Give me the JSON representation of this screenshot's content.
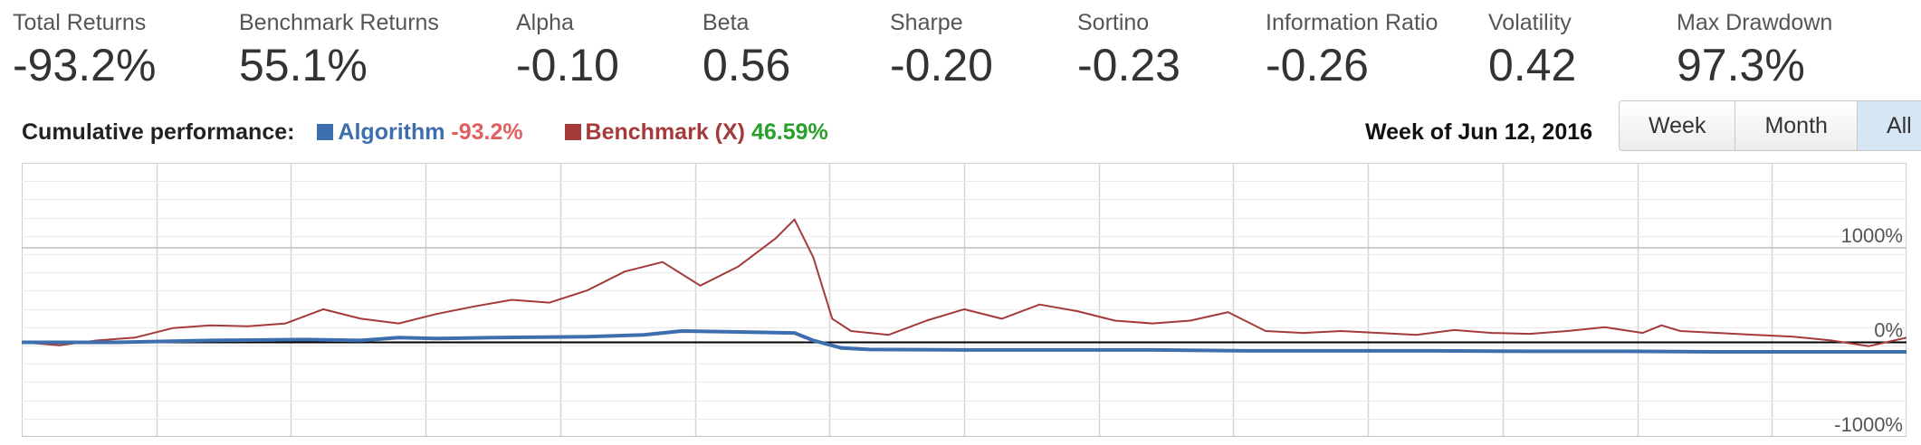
{
  "metrics": [
    {
      "label": "Total Returns",
      "value": "-93.2%"
    },
    {
      "label": "Benchmark Returns",
      "value": "55.1%"
    },
    {
      "label": "Alpha",
      "value": "-0.10"
    },
    {
      "label": "Beta",
      "value": "0.56"
    },
    {
      "label": "Sharpe",
      "value": "-0.20"
    },
    {
      "label": "Sortino",
      "value": "-0.23"
    },
    {
      "label": "Information Ratio",
      "value": "-0.26"
    },
    {
      "label": "Volatility",
      "value": "0.42"
    },
    {
      "label": "Max Drawdown",
      "value": "97.3%"
    }
  ],
  "performance": {
    "label": "Cumulative performance:",
    "algorithm_name": "Algorithm",
    "algorithm_value": "-93.2%",
    "benchmark_name": "Benchmark (X)",
    "benchmark_value": "46.59%"
  },
  "week_label": "Week of Jun 12, 2016",
  "range_buttons": [
    {
      "label": "Week",
      "active": false
    },
    {
      "label": "Month",
      "active": false
    },
    {
      "label": "All",
      "active": true
    }
  ],
  "colors": {
    "algorithm": "#3d6fae",
    "benchmark": "#a43a3a",
    "negative_value": "#e06060",
    "positive_value": "#2aa02a",
    "zero_line": "#000000",
    "grid": "#d5d5d5"
  },
  "chart_data": {
    "type": "line",
    "y_ticks": [
      {
        "value": 1000,
        "label": "1000%"
      },
      {
        "value": 0,
        "label": "0%"
      },
      {
        "value": -1000,
        "label": "-1000%"
      }
    ],
    "ylim": [
      -1000,
      1900
    ],
    "xlim": [
      0,
      100
    ],
    "grid": true,
    "series": [
      {
        "name": "Algorithm",
        "x": [
          0,
          5,
          10,
          15,
          18,
          20,
          22,
          25,
          30,
          33,
          35,
          38,
          41,
          42,
          43.5,
          45,
          50,
          55,
          60,
          65,
          70,
          75,
          80,
          85,
          90,
          95,
          100
        ],
        "y": [
          0,
          0,
          20,
          30,
          20,
          50,
          40,
          50,
          60,
          80,
          120,
          110,
          100,
          20,
          -60,
          -75,
          -80,
          -80,
          -80,
          -90,
          -90,
          -90,
          -95,
          -95,
          -100,
          -100,
          -100
        ]
      },
      {
        "name": "Benchmark (X)",
        "x": [
          0,
          2,
          4,
          6,
          8,
          10,
          12,
          14,
          16,
          18,
          20,
          22,
          24,
          26,
          28,
          30,
          32,
          34,
          36,
          38,
          40,
          41,
          42,
          43,
          44,
          46,
          48,
          50,
          52,
          54,
          56,
          58,
          60,
          62,
          64,
          66,
          68,
          70,
          72,
          74,
          76,
          78,
          80,
          82,
          84,
          86,
          87,
          88,
          90,
          92,
          94,
          96,
          98,
          100
        ],
        "y": [
          0,
          -30,
          20,
          50,
          150,
          180,
          170,
          200,
          350,
          250,
          200,
          300,
          380,
          450,
          420,
          550,
          750,
          850,
          600,
          800,
          1100,
          1300,
          900,
          250,
          120,
          80,
          230,
          350,
          250,
          400,
          330,
          230,
          200,
          230,
          320,
          120,
          100,
          120,
          100,
          80,
          130,
          100,
          90,
          120,
          160,
          100,
          180,
          120,
          100,
          80,
          60,
          20,
          -40,
          50
        ]
      }
    ]
  }
}
